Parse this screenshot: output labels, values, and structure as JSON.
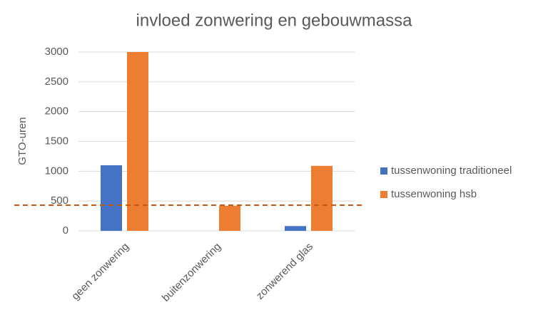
{
  "chart_data": {
    "type": "bar",
    "title": "invloed zonwering en gebouwmassa",
    "y_label": "GTO-uren",
    "categories": [
      "geen zonwering",
      "buitenzonwering",
      "zonwerend glas"
    ],
    "series": [
      {
        "name": "tussenwoning traditioneel",
        "color": "#4472c4",
        "values": [
          1100,
          0,
          80
        ]
      },
      {
        "name": "tussenwoning hsb",
        "color": "#ed7d31",
        "values": [
          3000,
          420,
          1090
        ]
      }
    ],
    "ylim": [
      0,
      3000
    ],
    "yticks": [
      0,
      500,
      1000,
      1500,
      2000,
      2500,
      3000
    ],
    "grid": true,
    "reference_line": {
      "value": 430,
      "color": "#c55a11"
    },
    "legend": "right"
  }
}
